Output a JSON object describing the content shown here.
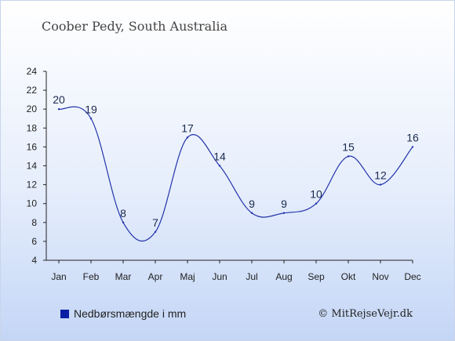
{
  "chart_data": {
    "type": "line",
    "title": "Coober Pedy, South Australia",
    "categories": [
      "Jan",
      "Feb",
      "Mar",
      "Apr",
      "Maj",
      "Jun",
      "Jul",
      "Aug",
      "Sep",
      "Okt",
      "Nov",
      "Dec"
    ],
    "series": [
      {
        "name": "Nedbørsmængde i mm",
        "values": [
          20,
          19,
          8,
          7,
          17,
          14,
          9,
          9,
          10,
          15,
          12,
          16
        ]
      }
    ],
    "ylim": [
      4,
      24
    ],
    "yticks": [
      "4",
      "6",
      "8",
      "10",
      "12",
      "14",
      "16",
      "18",
      "20",
      "22",
      "24"
    ],
    "grid": false,
    "legend": "bottom-left",
    "line_color": "#2233aa",
    "marker_color": "#0a1fa3"
  },
  "credit": "© MitRejseVejr.dk"
}
